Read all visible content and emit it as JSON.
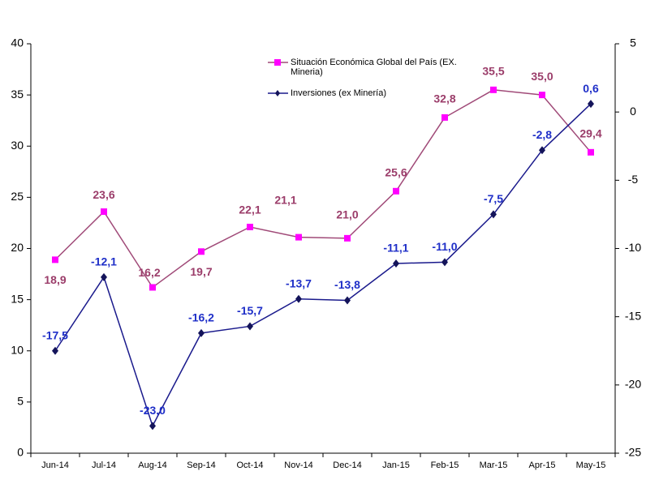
{
  "chart_data": {
    "type": "line",
    "categories": [
      "Jun-14",
      "Jul-14",
      "Aug-14",
      "Sep-14",
      "Oct-14",
      "Nov-14",
      "Dec-14",
      "Jan-15",
      "Feb-15",
      "Mar-15",
      "Apr-15",
      "May-15"
    ],
    "ylim": [
      0,
      40
    ],
    "yticks": [
      0,
      5,
      10,
      15,
      20,
      25,
      30,
      35,
      40
    ],
    "y2lim": [
      -25,
      5
    ],
    "y2ticks": [
      -25,
      -20,
      -15,
      -10,
      -5,
      0,
      5
    ],
    "series": [
      {
        "name": "Situación Económica Global del País (EX. Mineria)",
        "color": "#a04a78",
        "marker_color": "#ff00ff",
        "label_color": "#9b3d6a",
        "marker": "square",
        "values": [
          18.9,
          23.6,
          16.2,
          19.7,
          22.1,
          21.1,
          21.0,
          25.6,
          32.8,
          35.5,
          35.0,
          29.4
        ],
        "value_labels": [
          "18,9",
          "23,6",
          "16,2",
          "19,7",
          "22,1",
          "21,1",
          "21,0",
          "25,6",
          "32,8",
          "35,5",
          "35,0",
          "29,4"
        ]
      },
      {
        "name": "Inversiones (ex Minería)",
        "color": "#1a1a8c",
        "marker_color": "#14145a",
        "label_color": "#1f2fc8",
        "marker": "diamond",
        "axis": "y2",
        "values": [
          -17.5,
          -12.1,
          -23.0,
          -16.2,
          -15.7,
          -13.7,
          -13.8,
          -11.1,
          -11.0,
          -7.5,
          -2.8,
          0.6
        ],
        "value_labels": [
          "-17,5",
          "-12,1",
          "-23,0",
          "-16,2",
          "-15,7",
          "-13,7",
          "-13,8",
          "-11,1",
          "-11,0",
          "-7,5",
          "-2,8",
          "0,6"
        ]
      }
    ]
  }
}
